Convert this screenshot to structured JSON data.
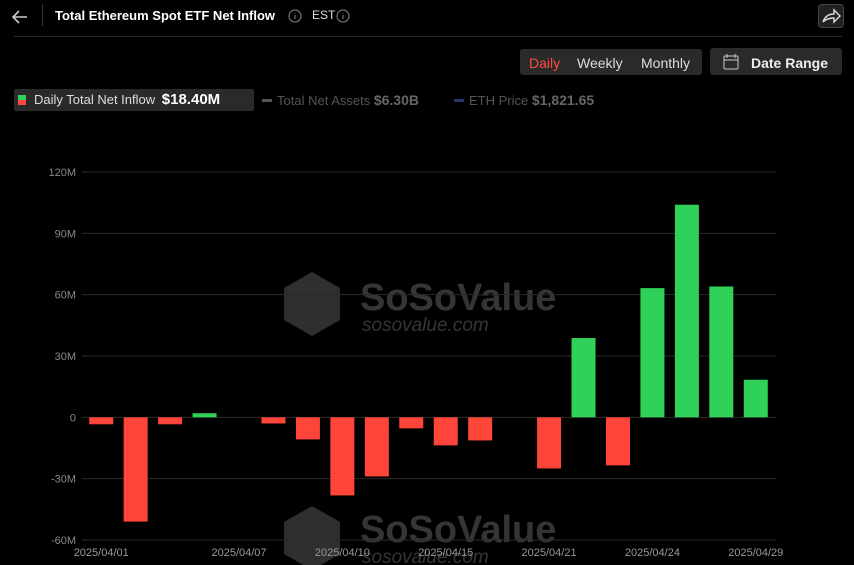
{
  "header": {
    "title": "Total Ethereum Spot ETF Net Inflow",
    "timezone": "EST",
    "tabs": [
      "Daily",
      "Weekly",
      "Monthly"
    ],
    "date_range": "Date Range"
  },
  "legend": [
    {
      "name": "Daily Total Net Inflow",
      "value": "$18.40M"
    },
    {
      "name": "Total Net Assets",
      "value": "$6.30B"
    },
    {
      "name": "ETH Price",
      "value": "$1,821.65"
    }
  ],
  "watermark": {
    "brand": "SoSoValue",
    "url": "sosovalue.com"
  },
  "chart_data": {
    "type": "bar",
    "categories": [
      "2025/04/01",
      null,
      null,
      null,
      "2025/04/07",
      null,
      null,
      "2025/04/10",
      null,
      null,
      "2025/04/15",
      null,
      null,
      "2025/04/21",
      null,
      null,
      "2025/04/24",
      null,
      null,
      "2025/04/29"
    ],
    "values": [
      -3.4,
      -51,
      -3.4,
      2,
      0,
      -3,
      -10.8,
      -38.2,
      -28.9,
      -5.4,
      -13.7,
      -11.3,
      0,
      -25,
      38.8,
      -23.5,
      63.2,
      104,
      64,
      18.4
    ],
    "positive_color": "#30d158",
    "negative_color": "#ff453a",
    "ylim": [
      -60,
      120
    ],
    "yticks": [
      {
        "value": -60,
        "label": "-60M"
      },
      {
        "value": -30,
        "label": "-30M"
      },
      0,
      {
        "value": 30,
        "label": "30M"
      },
      {
        "value": 60,
        "label": "60M"
      },
      {
        "value": 90,
        "label": "90M"
      },
      {
        "value": 120,
        "label": "120M"
      }
    ],
    "grid": true
  }
}
